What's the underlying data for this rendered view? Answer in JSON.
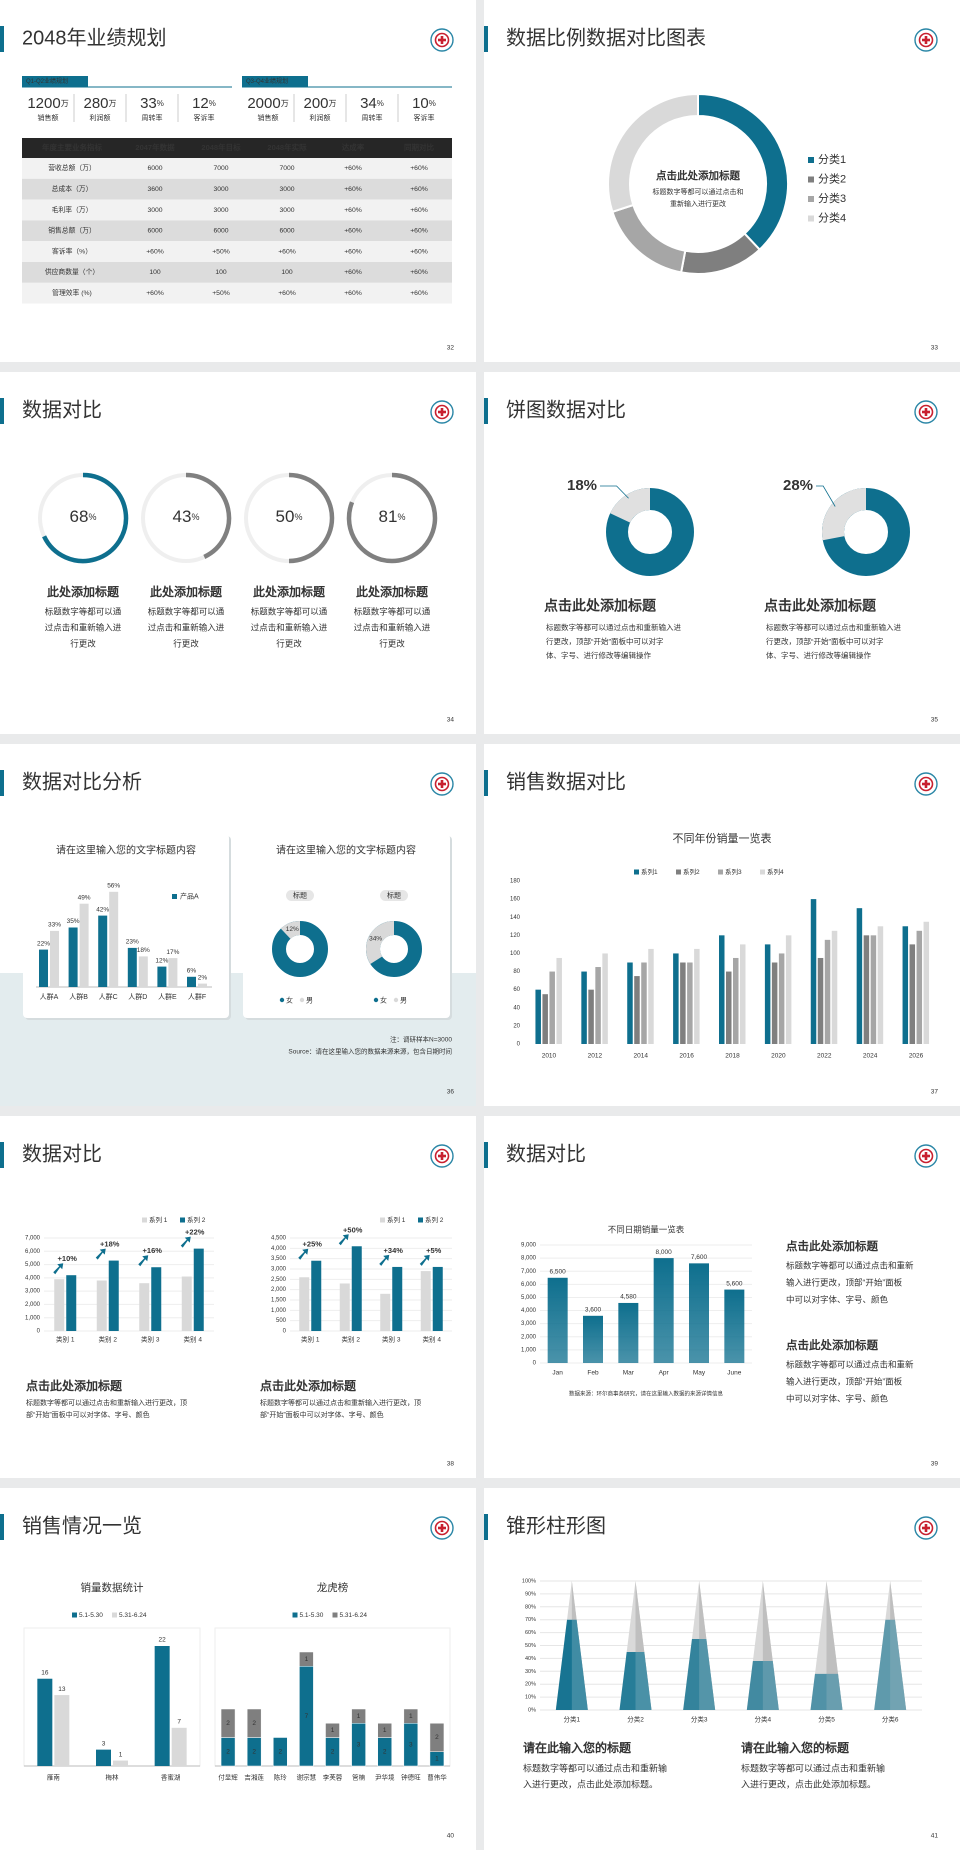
{
  "slides": [
    {
      "type": "kpi-table",
      "title": "2048年业绩规划",
      "page": "32",
      "kpi_groups": [
        {
          "tag": "Q1-Q2业绩规划",
          "items": [
            {
              "value": 1200,
              "unit": "万",
              "label": "销售额"
            },
            {
              "value": 280,
              "unit": "万",
              "label": "利润额"
            },
            {
              "value": 33,
              "unit": "%",
              "label": "周转率"
            },
            {
              "value": 12,
              "unit": "%",
              "label": "客诉率"
            }
          ]
        },
        {
          "tag": "Q3-Q4业绩规划",
          "items": [
            {
              "value": 2000,
              "unit": "万",
              "label": "销售额"
            },
            {
              "value": 200,
              "unit": "万",
              "label": "利润额"
            },
            {
              "value": 34,
              "unit": "%",
              "label": "周转率"
            },
            {
              "value": 10,
              "unit": "%",
              "label": "客诉率"
            }
          ]
        }
      ],
      "table": {
        "header": [
          "年度主要业务指标",
          "2047年数据",
          "2048年目标",
          "2048年实际",
          "达成率",
          "同期对比"
        ],
        "rows": [
          [
            "营收总额（万）",
            "6000",
            "7000",
            "7000",
            "+60%",
            "+60%"
          ],
          [
            "总成本（万）",
            "3600",
            "3000",
            "3000",
            "+60%",
            "+60%"
          ],
          [
            "毛利率（万）",
            "3000",
            "3000",
            "3000",
            "+60%",
            "+60%"
          ],
          [
            "销售总额（万）",
            "6000",
            "6000",
            "6000",
            "+60%",
            "+60%"
          ],
          [
            "客诉率（%）",
            "+60%",
            "+50%",
            "+60%",
            "+60%",
            "+60%"
          ],
          [
            "供应商数量（个）",
            "100",
            "100",
            "100",
            "+60%",
            "+60%"
          ],
          [
            "管理效率 (%)",
            "+60%",
            "+50%",
            "+60%",
            "+60%",
            "+60%"
          ]
        ]
      }
    },
    {
      "type": "donut",
      "title": "数据比例数据对比图表",
      "page": "33",
      "chart": {
        "categories": [
          "分类1",
          "分类2",
          "分类3",
          "分类4"
        ],
        "values": [
          38,
          15,
          17,
          30
        ],
        "colors": [
          "#0e6f8e",
          "#7f7f7f",
          "#a6a6a6",
          "#d9d9d9"
        ]
      },
      "center_title": "点击此处添加标题",
      "center_text": [
        "标题数字等都可以通过点击和",
        "重新输入进行更改"
      ]
    },
    {
      "type": "rings",
      "title": "数据对比",
      "page": "34",
      "unit": "%",
      "items": [
        {
          "value": 68,
          "color": "#0e6f8e",
          "heading": "此处添加标题",
          "text": [
            "标题数字等都可以通",
            "过点击和重新输入进",
            "行更改"
          ]
        },
        {
          "value": 43,
          "color": "#808080",
          "heading": "此处添加标题",
          "text": [
            "标题数字等都可以通",
            "过点击和重新输入进",
            "行更改"
          ]
        },
        {
          "value": 50,
          "color": "#808080",
          "heading": "此处添加标题",
          "text": [
            "标题数字等都可以通",
            "过点击和重新输入进",
            "行更改"
          ]
        },
        {
          "value": 81,
          "color": "#808080",
          "heading": "此处添加标题",
          "text": [
            "标题数字等都可以通",
            "过点击和重新输入进",
            "行更改"
          ]
        }
      ]
    },
    {
      "type": "pies",
      "title": "饼图数据对比",
      "page": "35",
      "items": [
        {
          "value": 18,
          "value_label": "18%",
          "heading": "点击此处添加标题",
          "text": [
            "标题数字等都可以通过点击和重新输入进",
            "行更改，顶部“开始”面板中可以对字",
            "体、字号、进行修改等编辑操作"
          ]
        },
        {
          "value": 28,
          "value_label": "28%",
          "heading": "点击此处添加标题",
          "text": [
            "标题数字等都可以通过点击和重新输入进",
            "行更改，顶部“开始”面板中可以对字",
            "体、字号、进行修改等编辑操作"
          ]
        }
      ]
    },
    {
      "type": "bar-donut",
      "title": "数据对比分析",
      "page": "36",
      "bar_card": {
        "title": "请在这里输入您的文字标题内容",
        "categories": [
          "人群A",
          "人群B",
          "人群C",
          "人群D",
          "人群E",
          "人群F"
        ],
        "series": [
          {
            "name": "产品A",
            "color": "#0e6f8e",
            "values": [
              22,
              35,
              42,
              23,
              12,
              6
            ],
            "value_labels": [
              "22%",
              "35%",
              "42%",
              "23%",
              "12%",
              "6%"
            ]
          },
          {
            "color": "#d9d9d9",
            "values": [
              33,
              49,
              56,
              18,
              17,
              2
            ],
            "value_labels": [
              "33%",
              "49%",
              "56%",
              "18%",
              "17%",
              "2%"
            ]
          }
        ]
      },
      "donut_card": {
        "title": "请在这里输入您的文字标题内容",
        "legend": [
          {
            "name": "女",
            "color": "#0e6f8e"
          },
          {
            "name": "男",
            "color": "#d9d9d9"
          }
        ],
        "items": [
          {
            "tag": "标题",
            "value": 12,
            "value_label": "12%"
          },
          {
            "tag": "标题",
            "value": 34,
            "value_label": "34%"
          }
        ]
      },
      "notes": [
        "注：调研样本N=3000",
        "Source：请在这里输入您的数据来源来源，包含日期时间"
      ]
    },
    {
      "type": "grouped-bar",
      "title": "销售数据对比",
      "page": "37",
      "chart": {
        "title": "不同年份销量一览表",
        "categories": [
          "2010",
          "2012",
          "2014",
          "2016",
          "2018",
          "2020",
          "2022",
          "2024",
          "2026"
        ],
        "series": [
          {
            "name": "系列1",
            "color": "#0e6f8e",
            "values": [
              60,
              80,
              90,
              100,
              120,
              110,
              160,
              150,
              130
            ]
          },
          {
            "name": "系列2",
            "color": "#7f7f7f",
            "values": [
              55,
              60,
              75,
              90,
              80,
              90,
              95,
              120,
              110
            ]
          },
          {
            "name": "系列3",
            "color": "#a6a6a6",
            "values": [
              80,
              85,
              90,
              90,
              95,
              100,
              115,
              120,
              125
            ]
          },
          {
            "name": "系列4",
            "color": "#d9d9d9",
            "values": [
              95,
              100,
              105,
              105,
              110,
              120,
              125,
              130,
              135
            ]
          }
        ],
        "ylim": [
          0,
          180
        ],
        "yticks": [
          0,
          20,
          40,
          60,
          80,
          100,
          120,
          140,
          160,
          180
        ]
      }
    },
    {
      "type": "growth-bars",
      "title": "数据对比",
      "page": "38",
      "charts": [
        {
          "categories": [
            "类别 1",
            "类别 2",
            "类别 3",
            "类别 4"
          ],
          "series": [
            {
              "name": "系列 1",
              "color": "#d9d9d9",
              "values": [
                3900,
                3800,
                3600,
                4100
              ]
            },
            {
              "name": "系列 2",
              "color": "#0e6f8e",
              "values": [
                4200,
                5300,
                4800,
                6200
              ]
            }
          ],
          "growth_labels": [
            "+10%",
            "+18%",
            "+16%",
            "+22%"
          ],
          "ylim": [
            0,
            7000
          ],
          "yticks": [
            0,
            {
              "value": 1000,
              "label": "1,000"
            },
            {
              "value": 2000,
              "label": "2,000"
            },
            {
              "value": 3000,
              "label": "3,000"
            },
            {
              "value": 4000,
              "label": "4,000"
            },
            {
              "value": 5000,
              "label": "5,000"
            },
            {
              "value": 6000,
              "label": "6,000"
            },
            {
              "value": 7000,
              "label": "7,000"
            }
          ],
          "heading": "点击此处添加标题",
          "text": [
            "标题数字等都可以通过点击和重新输入进行更改，顶",
            "部“开始”面板中可以对字体、字号、颜色"
          ]
        },
        {
          "categories": [
            "类别 1",
            "类别 2",
            "类别 3",
            "类别 4"
          ],
          "series": [
            {
              "name": "系列 1",
              "color": "#d9d9d9",
              "values": [
                2600,
                2300,
                1800,
                2900
              ]
            },
            {
              "name": "系列 2",
              "color": "#0e6f8e",
              "values": [
                3400,
                4100,
                3100,
                3100
              ]
            }
          ],
          "growth_labels": [
            "+25%",
            "+50%",
            "+34%",
            "+5%"
          ],
          "ylim": [
            0,
            4500
          ],
          "yticks": [
            0,
            500,
            {
              "value": 1000,
              "label": "1,000"
            },
            {
              "value": 1500,
              "label": "1,500"
            },
            {
              "value": 2000,
              "label": "2,000"
            },
            {
              "value": 2500,
              "label": "2,500"
            },
            {
              "value": 3000,
              "label": "3,000"
            },
            {
              "value": 3500,
              "label": "3,500"
            },
            {
              "value": 4000,
              "label": "4,000"
            },
            {
              "value": 4500,
              "label": "4,500"
            }
          ],
          "heading": "点击此处添加标题",
          "text": [
            "标题数字等都可以通过点击和重新输入进行更改，顶",
            "部“开始”面板中可以对字体、字号、颜色"
          ]
        }
      ]
    },
    {
      "type": "bar-text",
      "title": "数据对比",
      "page": "39",
      "chart": {
        "title": "不同日期销量一览表",
        "categories": [
          "Jan",
          "Feb",
          "Mar",
          "Apr",
          "May",
          "June"
        ],
        "values": [
          6500,
          3600,
          4580,
          8000,
          7600,
          5600
        ],
        "value_labels": [
          "6,500",
          "3,600",
          "4,580",
          "8,000",
          "7,600",
          "5,600"
        ],
        "color": "#0e6f8e",
        "ylim": [
          0,
          9000
        ],
        "yticks": [
          0,
          {
            "value": 1000,
            "label": "1,000"
          },
          {
            "value": 2000,
            "label": "2,000"
          },
          {
            "value": 3000,
            "label": "3,000"
          },
          {
            "value": 4000,
            "label": "4,000"
          },
          {
            "value": 5000,
            "label": "5,000"
          },
          {
            "value": 6000,
            "label": "6,000"
          },
          {
            "value": 7000,
            "label": "7,000"
          },
          {
            "value": 8000,
            "label": "8,000"
          },
          {
            "value": 9000,
            "label": "9,000"
          }
        ],
        "source": "数据来源：环尔商事务研究，请在这里输入数据的来源详情信息"
      },
      "blocks": [
        {
          "heading": "点击此处添加标题",
          "text": [
            "标题数字等都可以通过点击和重新",
            "输入进行更改，顶部“开始”面板",
            "中可以对字体、字号、颜色"
          ]
        },
        {
          "heading": "点击此处添加标题",
          "text": [
            "标题数字等都可以通过点击和重新",
            "输入进行更改，顶部“开始”面板",
            "中可以对字体、字号、颜色"
          ]
        }
      ]
    },
    {
      "type": "sales",
      "title": "销售情况一览",
      "page": "40",
      "charts": [
        {
          "title": "销量数据统计",
          "stacked": false,
          "categories": [
            "雁南",
            "梅林",
            "香蜜湖"
          ],
          "series": [
            {
              "name": "5.1-5.30",
              "color": "#0e6f8e",
              "values": [
                16,
                3,
                22
              ]
            },
            {
              "name": "5.31-6.24",
              "color": "#d9d9d9",
              "values": [
                13,
                1,
                7
              ]
            }
          ]
        },
        {
          "title": "龙虎榜",
          "stacked": true,
          "categories": [
            "付显辉",
            "吉湘莲",
            "陈玲",
            "谢宗慧",
            "李芙蓉",
            "管楠",
            "尹华境",
            "钟德旺",
            "曹伟华"
          ],
          "series": [
            {
              "name": "5.1-5.30",
              "color": "#0e6f8e",
              "values": [
                2,
                2,
                2,
                7,
                2,
                3,
                2,
                3,
                1
              ]
            },
            {
              "name": "5.31-6.24",
              "color": "#7f7f7f",
              "values": [
                2,
                2,
                null,
                1,
                1,
                1,
                1,
                1,
                2
              ]
            }
          ]
        }
      ]
    },
    {
      "type": "cone",
      "title": "锥形柱形图",
      "page": "41",
      "chart": {
        "categories": [
          "分类1",
          "分类2",
          "分类3",
          "分类4",
          "分类5",
          "分类6"
        ],
        "values": [
          70,
          45,
          55,
          38,
          28,
          70
        ],
        "color": "#0e6f8e",
        "ylim": [
          0,
          100
        ],
        "yticks": [
          {
            "value": 0,
            "label": "0%"
          },
          {
            "value": 10,
            "label": "10%"
          },
          {
            "value": 20,
            "label": "20%"
          },
          {
            "value": 30,
            "label": "30%"
          },
          {
            "value": 40,
            "label": "40%"
          },
          {
            "value": 50,
            "label": "50%"
          },
          {
            "value": 60,
            "label": "60%"
          },
          {
            "value": 70,
            "label": "70%"
          },
          {
            "value": 80,
            "label": "80%"
          },
          {
            "value": 90,
            "label": "90%"
          },
          {
            "value": 100,
            "label": "100%"
          }
        ]
      },
      "blocks": [
        {
          "heading": "请在此输入您的标题",
          "text": [
            "标题数字等都可以通过点击和重新输",
            "入进行更改，点击此处添加标题。"
          ]
        },
        {
          "heading": "请在此输入您的标题",
          "text": [
            "标题数字等都可以通过点击和重新输",
            "入进行更改，点击此处添加标题。"
          ]
        }
      ]
    }
  ]
}
